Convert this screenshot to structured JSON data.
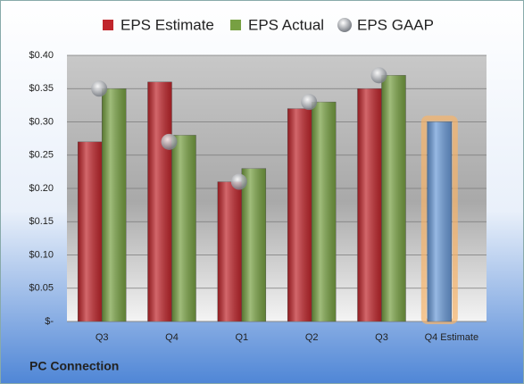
{
  "chart_data": {
    "type": "bar",
    "title": "PC Connection",
    "categories": [
      "Q3",
      "Q4",
      "Q1",
      "Q2",
      "Q3",
      "Q4 Estimate"
    ],
    "series": [
      {
        "name": "EPS Estimate",
        "color": "#c0262c",
        "values": [
          0.27,
          0.36,
          0.21,
          0.32,
          0.35,
          0.3
        ]
      },
      {
        "name": "EPS Actual",
        "color": "#77a042",
        "values": [
          0.35,
          0.28,
          0.23,
          0.33,
          0.37,
          null
        ]
      },
      {
        "name": "EPS GAAP",
        "type": "scatter",
        "color": "#b8bcc4",
        "values": [
          0.35,
          0.27,
          0.21,
          0.33,
          0.37,
          null
        ]
      }
    ],
    "forecast_color": "#6b9bd8",
    "forecast_glow": "#f6b46a",
    "ylim": [
      0,
      0.4
    ],
    "yticks": [
      {
        "value": 0,
        "label": "$-"
      },
      {
        "value": 0.05,
        "label": "$0.05"
      },
      {
        "value": 0.1,
        "label": "$0.10"
      },
      {
        "value": 0.15,
        "label": "$0.15"
      },
      {
        "value": 0.2,
        "label": "$0.20"
      },
      {
        "value": 0.25,
        "label": "$0.25"
      },
      {
        "value": 0.3,
        "label": "$0.30"
      },
      {
        "value": 0.35,
        "label": "$0.35"
      },
      {
        "value": 0.4,
        "label": "$0.40"
      }
    ],
    "grid": true,
    "legend": "top"
  }
}
